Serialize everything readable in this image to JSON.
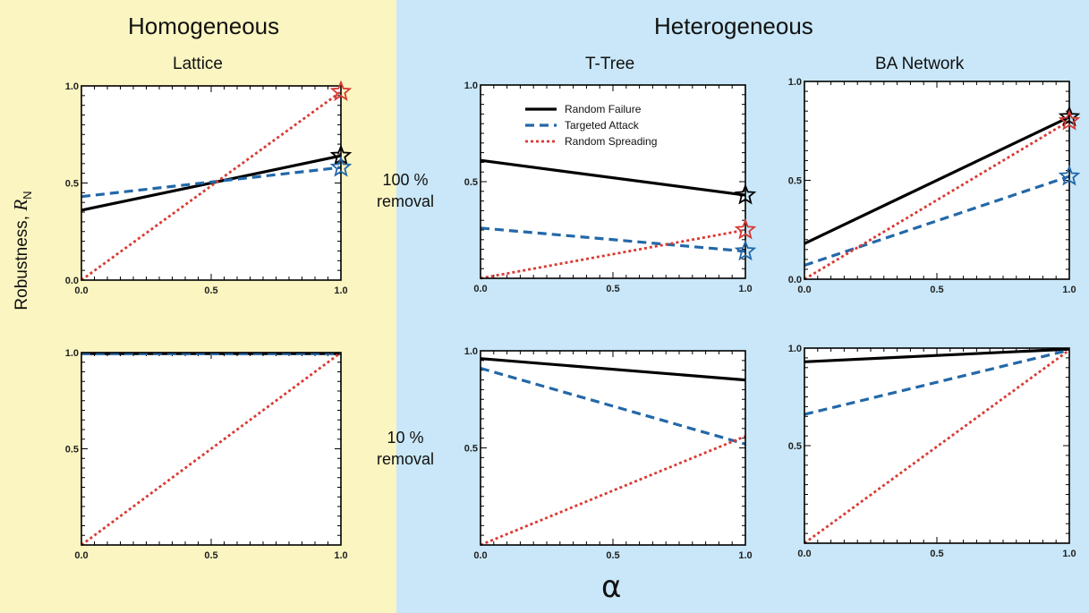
{
  "groups": {
    "homogeneous": "Homogeneous",
    "heterogeneous": "Heterogeneous"
  },
  "row_labels": {
    "top": [
      "100 %",
      "removal"
    ],
    "bottom": [
      "10 %",
      "removal"
    ]
  },
  "y_axis_label": {
    "text": "Robustness, ",
    "symbol": "R",
    "subscript": "N"
  },
  "x_axis_label": "α",
  "colors": {
    "random_failure": "#000000",
    "targeted_attack": "#2368a8",
    "random_spreading": "#d93a33",
    "homogeneous_bg": "#fbf5c2",
    "heterogeneous_bg": "#c9e7f8"
  },
  "legend": {
    "entries": [
      {
        "label": "Random Failure",
        "key": "random_failure"
      },
      {
        "label": "Targeted Attack",
        "key": "targeted_attack"
      },
      {
        "label": "Random Spreading",
        "key": "random_spreading"
      }
    ],
    "placement": "top-left of T-Tree 100 % panel"
  },
  "chart_data": [
    {
      "id": "lattice-100",
      "type": "line",
      "title": "Lattice",
      "xlim": [
        0,
        1
      ],
      "ylim": [
        0,
        1
      ],
      "xticks": [
        "0.0",
        "0.5",
        "1.0"
      ],
      "yticks": [
        "0.0",
        "0.5",
        "1.0"
      ],
      "series": [
        {
          "key": "random_failure",
          "x": [
            0,
            1
          ],
          "y": [
            0.36,
            0.64
          ],
          "star_at_end": true
        },
        {
          "key": "targeted_attack",
          "x": [
            0,
            1
          ],
          "y": [
            0.43,
            0.58
          ],
          "star_at_end": true
        },
        {
          "key": "random_spreading",
          "x": [
            0,
            1
          ],
          "y": [
            0,
            0.97
          ],
          "star_at_end": true
        }
      ]
    },
    {
      "id": "ttree-100",
      "type": "line",
      "title": "T-Tree",
      "xlim": [
        0,
        1
      ],
      "ylim": [
        0,
        1
      ],
      "xticks": [
        "0.0",
        "0.5",
        "1.0"
      ],
      "yticks": [
        "",
        "0.5",
        "1.0"
      ],
      "series": [
        {
          "key": "random_failure",
          "x": [
            0,
            1
          ],
          "y": [
            0.61,
            0.43
          ],
          "star_at_end": true
        },
        {
          "key": "targeted_attack",
          "x": [
            0,
            1
          ],
          "y": [
            0.26,
            0.14
          ],
          "star_at_end": true
        },
        {
          "key": "random_spreading",
          "x": [
            0,
            1
          ],
          "y": [
            0,
            0.25
          ],
          "star_at_end": true
        }
      ]
    },
    {
      "id": "ba-100",
      "type": "line",
      "title": "BA Network",
      "xlim": [
        0,
        1
      ],
      "ylim": [
        0,
        1
      ],
      "xticks": [
        "0.0",
        "0.5",
        "1.0"
      ],
      "yticks": [
        "0.0",
        "0.5",
        "1.0"
      ],
      "series": [
        {
          "key": "random_failure",
          "x": [
            0,
            1
          ],
          "y": [
            0.18,
            0.82
          ],
          "star_at_end": true
        },
        {
          "key": "targeted_attack",
          "x": [
            0,
            1
          ],
          "y": [
            0.07,
            0.52
          ],
          "star_at_end": true
        },
        {
          "key": "random_spreading",
          "x": [
            0,
            1
          ],
          "y": [
            0,
            0.8
          ],
          "star_at_end": true
        }
      ]
    },
    {
      "id": "lattice-10",
      "type": "line",
      "title": "",
      "xlim": [
        0,
        1
      ],
      "ylim": [
        0,
        1
      ],
      "xticks": [
        "0.0",
        "0.5",
        "1.0"
      ],
      "yticks": [
        "",
        "0.5",
        "1.0"
      ],
      "series": [
        {
          "key": "random_failure",
          "x": [
            0,
            1
          ],
          "y": [
            0.995,
            0.995
          ],
          "star_at_end": false
        },
        {
          "key": "targeted_attack",
          "x": [
            0,
            1
          ],
          "y": [
            0.995,
            0.995
          ],
          "star_at_end": false
        },
        {
          "key": "random_spreading",
          "x": [
            0,
            1
          ],
          "y": [
            0,
            1
          ],
          "star_at_end": false
        }
      ]
    },
    {
      "id": "ttree-10",
      "type": "line",
      "title": "",
      "xlim": [
        0,
        1
      ],
      "ylim": [
        0,
        1
      ],
      "xticks": [
        "0.0",
        "0.5",
        "1.0"
      ],
      "yticks": [
        "",
        "0.5",
        "1.0"
      ],
      "series": [
        {
          "key": "random_failure",
          "x": [
            0,
            1
          ],
          "y": [
            0.96,
            0.85
          ],
          "star_at_end": false
        },
        {
          "key": "targeted_attack",
          "x": [
            0,
            1
          ],
          "y": [
            0.91,
            0.52
          ],
          "star_at_end": false
        },
        {
          "key": "random_spreading",
          "x": [
            0,
            1
          ],
          "y": [
            0,
            0.56
          ],
          "star_at_end": false
        }
      ]
    },
    {
      "id": "ba-10",
      "type": "line",
      "title": "",
      "xlim": [
        0,
        1
      ],
      "ylim": [
        0,
        1
      ],
      "xticks": [
        "0.0",
        "0.5",
        "1.0"
      ],
      "yticks": [
        "",
        "0.5",
        "1.0"
      ],
      "series": [
        {
          "key": "random_failure",
          "x": [
            0,
            1
          ],
          "y": [
            0.93,
            0.995
          ],
          "star_at_end": false
        },
        {
          "key": "targeted_attack",
          "x": [
            0,
            1
          ],
          "y": [
            0.66,
            0.99
          ],
          "star_at_end": false
        },
        {
          "key": "random_spreading",
          "x": [
            0,
            1
          ],
          "y": [
            0,
            0.99
          ],
          "star_at_end": false
        }
      ]
    }
  ]
}
